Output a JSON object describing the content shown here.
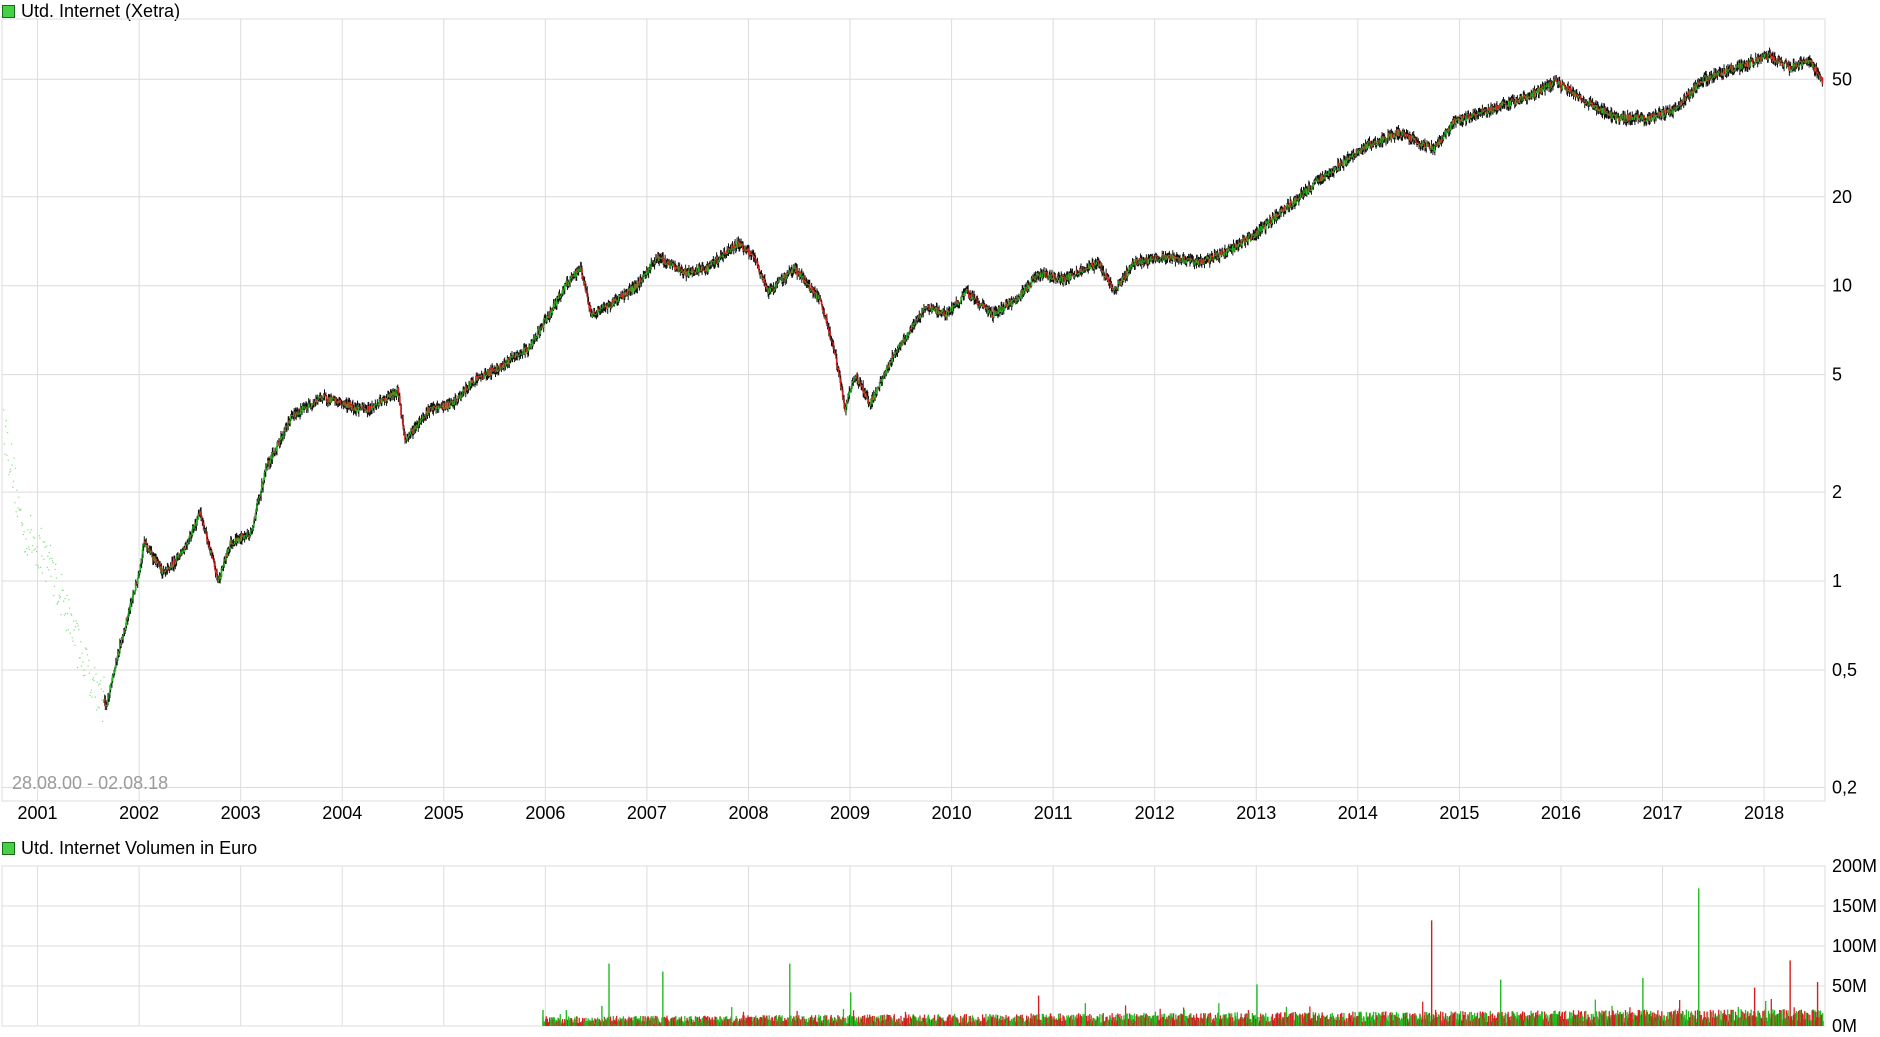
{
  "price_panel": {
    "legend": "Utd. Internet (Xetra)",
    "range_label": "28.08.00 - 02.08.18",
    "y_ticks": [
      "50",
      "20",
      "10",
      "5",
      "2",
      "1",
      "0,5",
      "0,2"
    ],
    "x_ticks": [
      "2001",
      "2002",
      "2003",
      "2004",
      "2005",
      "2006",
      "2007",
      "2008",
      "2009",
      "2010",
      "2011",
      "2012",
      "2013",
      "2014",
      "2015",
      "2016",
      "2017",
      "2018"
    ]
  },
  "volume_panel": {
    "legend": "Utd. Internet Volumen in Euro",
    "y_ticks": [
      "200M",
      "150M",
      "100M",
      "50M",
      "0M"
    ]
  },
  "colors": {
    "up": "#22bb22",
    "down": "#d42020",
    "pre": "#7fe07f",
    "grid": "#dcdcdc",
    "legend": "#46d046"
  },
  "chart_data": [
    {
      "type": "line",
      "title": "Utd. Internet (Xetra)",
      "scale": "log",
      "ylim": [
        0.18,
        80
      ],
      "x_unit": "year",
      "points": [
        [
          2000.66,
          3.5
        ],
        [
          2000.85,
          1.5
        ],
        [
          2001.1,
          1.2
        ],
        [
          2001.45,
          0.55
        ],
        [
          2001.68,
          0.38
        ],
        [
          2001.82,
          0.62
        ],
        [
          2001.98,
          1.0
        ],
        [
          2002.05,
          1.35
        ],
        [
          2002.25,
          1.05
        ],
        [
          2002.45,
          1.3
        ],
        [
          2002.6,
          1.7
        ],
        [
          2002.78,
          1.0
        ],
        [
          2002.9,
          1.35
        ],
        [
          2003.1,
          1.45
        ],
        [
          2003.25,
          2.4
        ],
        [
          2003.5,
          3.6
        ],
        [
          2003.8,
          4.2
        ],
        [
          2004.1,
          3.9
        ],
        [
          2004.25,
          3.8
        ],
        [
          2004.55,
          4.4
        ],
        [
          2004.62,
          3.0
        ],
        [
          2004.85,
          3.8
        ],
        [
          2005.1,
          4.0
        ],
        [
          2005.3,
          4.8
        ],
        [
          2005.55,
          5.3
        ],
        [
          2005.85,
          6.2
        ],
        [
          2006.2,
          10.0
        ],
        [
          2006.35,
          11.5
        ],
        [
          2006.45,
          8.0
        ],
        [
          2006.6,
          8.5
        ],
        [
          2006.9,
          10.0
        ],
        [
          2007.1,
          12.5
        ],
        [
          2007.4,
          11.0
        ],
        [
          2007.6,
          11.5
        ],
        [
          2007.9,
          14.0
        ],
        [
          2008.05,
          12.5
        ],
        [
          2008.2,
          9.5
        ],
        [
          2008.45,
          11.5
        ],
        [
          2008.7,
          9.0
        ],
        [
          2008.85,
          6.0
        ],
        [
          2008.95,
          3.8
        ],
        [
          2009.05,
          5.0
        ],
        [
          2009.2,
          4.0
        ],
        [
          2009.45,
          6.0
        ],
        [
          2009.75,
          8.5
        ],
        [
          2009.95,
          8.0
        ],
        [
          2010.15,
          9.5
        ],
        [
          2010.4,
          8.0
        ],
        [
          2010.65,
          9.0
        ],
        [
          2010.85,
          11.0
        ],
        [
          2011.1,
          10.5
        ],
        [
          2011.45,
          12.0
        ],
        [
          2011.6,
          9.5
        ],
        [
          2011.8,
          12.0
        ],
        [
          2012.1,
          12.5
        ],
        [
          2012.45,
          12.0
        ],
        [
          2012.7,
          13.0
        ],
        [
          2013.0,
          15.0
        ],
        [
          2013.3,
          18.5
        ],
        [
          2013.7,
          24.0
        ],
        [
          2014.1,
          30.0
        ],
        [
          2014.4,
          33.0
        ],
        [
          2014.75,
          29.0
        ],
        [
          2014.95,
          36.0
        ],
        [
          2015.35,
          40.0
        ],
        [
          2015.7,
          44.0
        ],
        [
          2015.95,
          49.0
        ],
        [
          2016.25,
          42.0
        ],
        [
          2016.55,
          37.0
        ],
        [
          2016.85,
          37.0
        ],
        [
          2017.1,
          39.0
        ],
        [
          2017.4,
          50.0
        ],
        [
          2017.75,
          55.0
        ],
        [
          2018.05,
          60.0
        ],
        [
          2018.25,
          55.0
        ],
        [
          2018.45,
          58.0
        ],
        [
          2018.58,
          49.0
        ]
      ]
    },
    {
      "type": "bar",
      "title": "Utd. Internet Volumen in Euro",
      "ylim": [
        0,
        200
      ],
      "y_unit": "M",
      "baseline_level": [
        9,
        16
      ],
      "spikes": [
        [
          2005.97,
          20
        ],
        [
          2006.2,
          20
        ],
        [
          2006.55,
          25
        ],
        [
          2006.62,
          78
        ],
        [
          2007.15,
          68
        ],
        [
          2008.4,
          78
        ],
        [
          2009.0,
          42
        ],
        [
          2010.85,
          38
        ],
        [
          2012.0,
          18
        ],
        [
          2013.0,
          52
        ],
        [
          2014.72,
          132
        ],
        [
          2015.4,
          58
        ],
        [
          2016.8,
          60
        ],
        [
          2017.35,
          172
        ],
        [
          2017.9,
          48
        ],
        [
          2018.25,
          82
        ],
        [
          2018.52,
          55
        ]
      ]
    }
  ]
}
